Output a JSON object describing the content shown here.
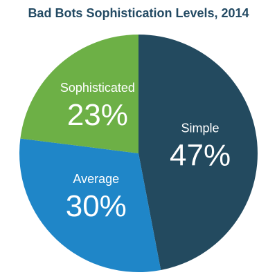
{
  "chart_data": {
    "type": "pie",
    "title": "Bad Bots Sophistication Levels, 2014",
    "slices": [
      {
        "label": "Simple",
        "value": 47,
        "display": "47%",
        "color": "#234a5f"
      },
      {
        "label": "Average",
        "value": 30,
        "display": "30%",
        "color": "#1f86c8"
      },
      {
        "label": "Sophisticated",
        "value": 23,
        "display": "23%",
        "color": "#6db046"
      }
    ],
    "legend": "none",
    "start": "top",
    "direction": "clockwise"
  }
}
